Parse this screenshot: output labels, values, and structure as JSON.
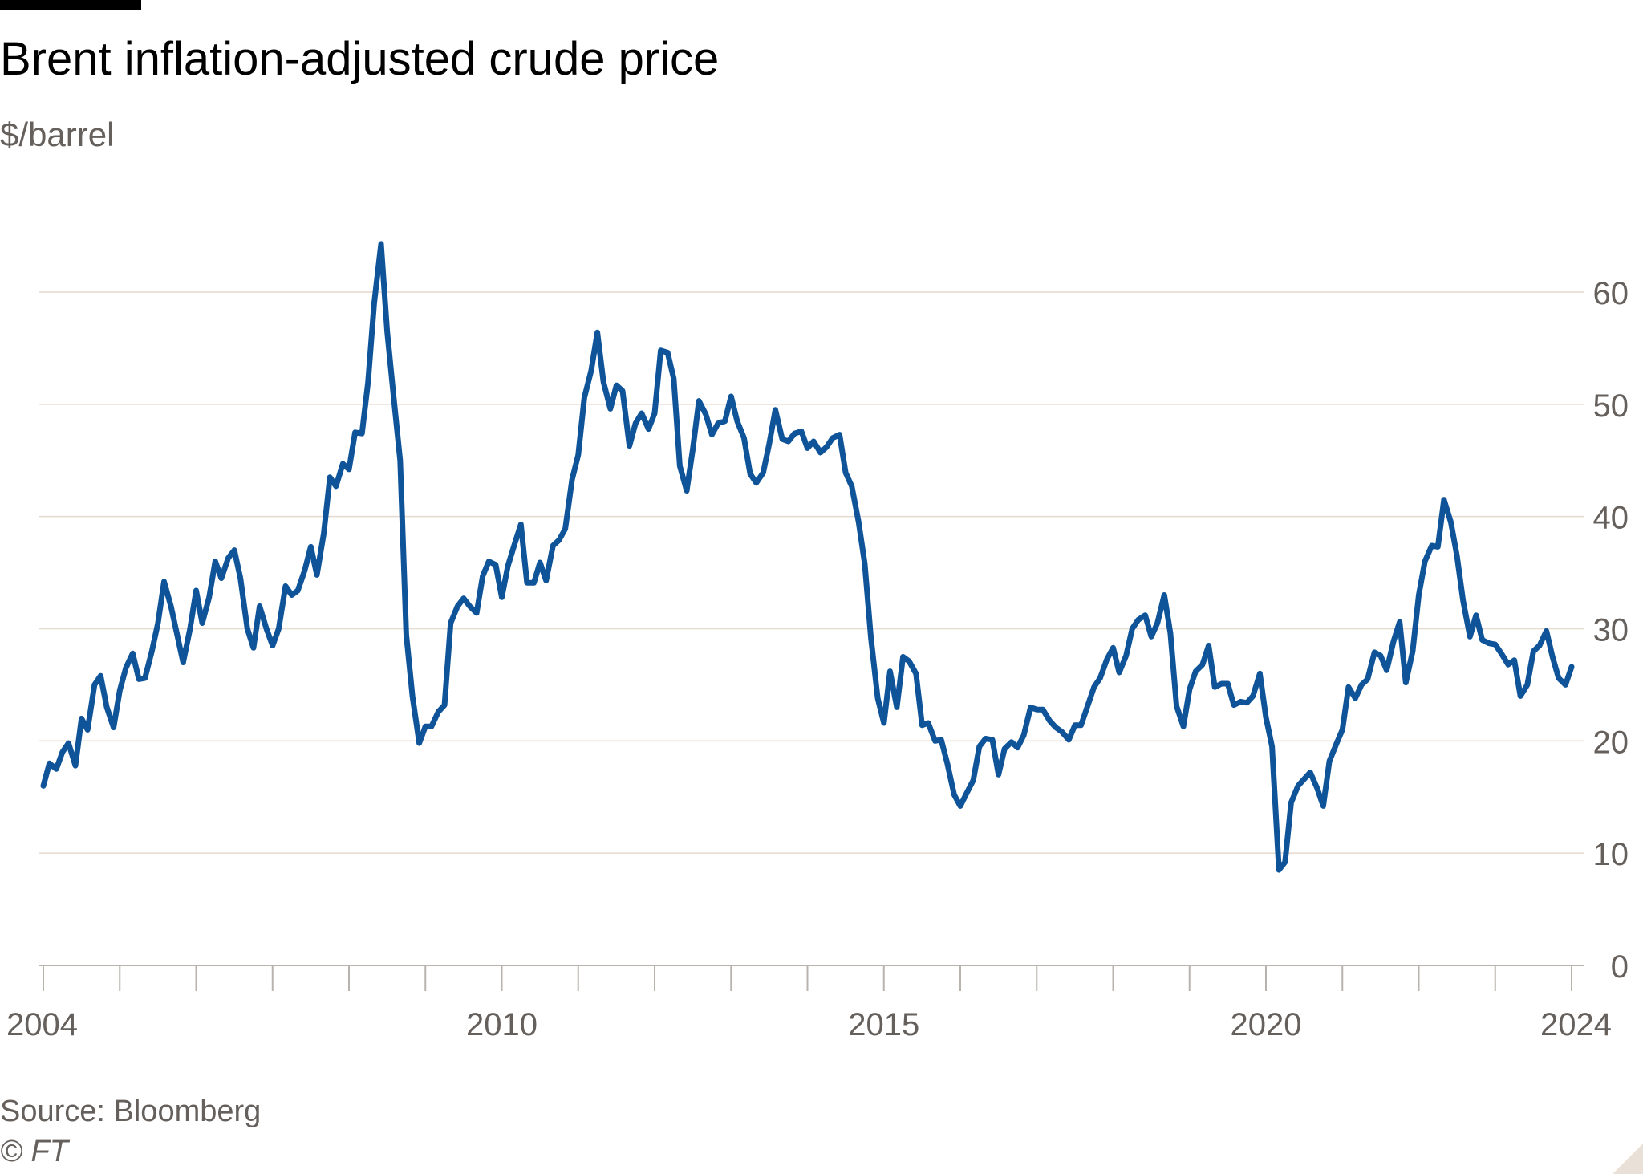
{
  "header": {
    "title": "Brent inflation-adjusted crude price",
    "subtitle": "$/barrel"
  },
  "footer": {
    "source": "Source: Bloomberg",
    "copyright": "© FT"
  },
  "colors": {
    "line": "#0f5499",
    "grid": "#e6d9ce",
    "axis_text": "#66605c",
    "title_text": "#000000"
  },
  "chart_data": {
    "type": "line",
    "title": "Brent inflation-adjusted crude price",
    "ylabel": "$/barrel",
    "xlabel": "",
    "xlim": [
      2004.0,
      2024.0
    ],
    "ylim": [
      0,
      60
    ],
    "y_ticks": [
      0,
      10,
      20,
      30,
      40,
      50,
      60
    ],
    "y_tick_labels": [
      "0",
      "10",
      "20",
      "30",
      "40",
      "50",
      "60"
    ],
    "x_tick_labels": [
      {
        "x": 2004,
        "label": "2004"
      },
      {
        "x": 2010,
        "label": "2010"
      },
      {
        "x": 2015,
        "label": "2015"
      },
      {
        "x": 2020,
        "label": "2020"
      },
      {
        "x": 2024,
        "label": "2024"
      }
    ],
    "x_minor_ticks": [
      2004,
      2005,
      2006,
      2007,
      2008,
      2009,
      2010,
      2011,
      2012,
      2013,
      2014,
      2015,
      2016,
      2017,
      2018,
      2019,
      2020,
      2021,
      2022,
      2023,
      2024
    ],
    "grid": true,
    "y_axis_side": "right",
    "legend": "none",
    "series": [
      {
        "values_x": [
          2004.0,
          2004.08,
          2004.17,
          2004.25,
          2004.33,
          2004.42,
          2004.5,
          2004.58,
          2004.67,
          2004.75,
          2004.83,
          2004.92,
          2005.0,
          2005.08,
          2005.17,
          2005.25,
          2005.33,
          2005.42,
          2005.5,
          2005.58,
          2005.67,
          2005.75,
          2005.83,
          2005.92,
          2006.0,
          2006.08,
          2006.17,
          2006.25,
          2006.33,
          2006.42,
          2006.5,
          2006.58,
          2006.67,
          2006.75,
          2006.83,
          2006.92,
          2007.0,
          2007.08,
          2007.17,
          2007.25,
          2007.33,
          2007.42,
          2007.5,
          2007.58,
          2007.67,
          2007.75,
          2007.83,
          2007.92,
          2008.0,
          2008.08,
          2008.17,
          2008.25,
          2008.33,
          2008.42,
          2008.5,
          2008.58,
          2008.67,
          2008.75,
          2008.83,
          2008.92,
          2009.0,
          2009.08,
          2009.17,
          2009.25,
          2009.33,
          2009.42,
          2009.5,
          2009.58,
          2009.67,
          2009.75,
          2009.83,
          2009.92,
          2010.0,
          2010.08,
          2010.17,
          2010.25,
          2010.33,
          2010.42,
          2010.5,
          2010.58,
          2010.67,
          2010.75,
          2010.83,
          2010.92,
          2011.0,
          2011.08,
          2011.17,
          2011.25,
          2011.33,
          2011.42,
          2011.5,
          2011.58,
          2011.67,
          2011.75,
          2011.83,
          2011.92,
          2012.0,
          2012.08,
          2012.17,
          2012.25,
          2012.33,
          2012.42,
          2012.5,
          2012.58,
          2012.67,
          2012.75,
          2012.83,
          2012.92,
          2013.0,
          2013.08,
          2013.17,
          2013.25,
          2013.33,
          2013.42,
          2013.5,
          2013.58,
          2013.67,
          2013.75,
          2013.83,
          2013.92,
          2014.0,
          2014.08,
          2014.17,
          2014.25,
          2014.33,
          2014.42,
          2014.5,
          2014.58,
          2014.67,
          2014.75,
          2014.83,
          2014.92,
          2015.0,
          2015.08,
          2015.17,
          2015.25,
          2015.33,
          2015.42,
          2015.5,
          2015.58,
          2015.67,
          2015.75,
          2015.83,
          2015.92,
          2016.0,
          2016.08,
          2016.17,
          2016.25,
          2016.33,
          2016.42,
          2016.5,
          2016.58,
          2016.67,
          2016.75,
          2016.83,
          2016.92,
          2017.0,
          2017.08,
          2017.17,
          2017.25,
          2017.33,
          2017.42,
          2017.5,
          2017.58,
          2017.67,
          2017.75,
          2017.83,
          2017.92,
          2018.0,
          2018.08,
          2018.17,
          2018.25,
          2018.33,
          2018.42,
          2018.5,
          2018.58,
          2018.67,
          2018.75,
          2018.83,
          2018.92,
          2019.0,
          2019.08,
          2019.17,
          2019.25,
          2019.33,
          2019.42,
          2019.5,
          2019.58,
          2019.67,
          2019.75,
          2019.83,
          2019.92,
          2020.0,
          2020.08,
          2020.17,
          2020.25,
          2020.33,
          2020.42,
          2020.5,
          2020.58,
          2020.67,
          2020.75,
          2020.83,
          2020.92,
          2021.0,
          2021.08,
          2021.17,
          2021.25,
          2021.33,
          2021.42,
          2021.5,
          2021.58,
          2021.67,
          2021.75,
          2021.83,
          2021.92,
          2022.0,
          2022.08,
          2022.17,
          2022.25,
          2022.33,
          2022.42,
          2022.5,
          2022.58,
          2022.67,
          2022.75,
          2022.83,
          2022.92,
          2023.0,
          2023.08,
          2023.17,
          2023.25,
          2023.33,
          2023.42,
          2023.5,
          2023.58,
          2023.67,
          2023.75,
          2023.83,
          2023.92,
          2024.0
        ],
        "values_y": [
          16,
          18,
          17.5,
          19,
          19.8,
          17.8,
          22,
          21,
          25,
          25.8,
          23,
          21.2,
          24.5,
          26.5,
          27.8,
          25.5,
          25.6,
          28,
          30.5,
          34.2,
          32,
          29.5,
          27,
          30,
          33.4,
          30.5,
          32.8,
          36,
          34.5,
          36.3,
          37,
          34.5,
          30,
          28.3,
          32,
          30,
          28.5,
          30,
          33.8,
          33,
          33.4,
          35.2,
          37.3,
          34.8,
          38.5,
          43.5,
          42.7,
          44.7,
          44.2,
          47.5,
          47.4,
          52,
          59,
          64.3,
          56.5,
          51,
          45,
          29.5,
          24,
          19.8,
          21.3,
          21.3,
          22.6,
          23.2,
          30.5,
          32,
          32.7,
          32,
          31.4,
          34.7,
          36,
          35.7,
          32.8,
          35.6,
          37.6,
          39.3,
          34.1,
          34.1,
          35.9,
          34.3,
          37.4,
          37.9,
          38.9,
          43.3,
          45.5,
          50.6,
          53,
          56.4,
          52,
          49.6,
          51.7,
          51.2,
          46.3,
          48.3,
          49.2,
          47.8,
          49.2,
          54.8,
          54.6,
          52.3,
          44.5,
          42.3,
          46,
          50.3,
          49.1,
          47.3,
          48.3,
          48.5,
          50.7,
          48.5,
          47,
          43.8,
          43,
          43.9,
          46.5,
          49.5,
          46.9,
          46.7,
          47.4,
          47.6,
          46.1,
          46.7,
          45.7,
          46.2,
          47,
          47.3,
          43.9,
          42.7,
          39.5,
          35.8,
          29.2,
          23.8,
          21.6,
          26.2,
          23,
          27.5,
          27.1,
          26,
          21.4,
          21.6,
          20,
          20.1,
          18,
          15.2,
          14.2,
          15.3,
          16.5,
          19.5,
          20.2,
          20.1,
          17,
          19.3,
          19.9,
          19.4,
          20.5,
          23,
          22.8,
          22.8,
          21.8,
          21.2,
          20.8,
          20.1,
          21.4,
          21.4,
          23.2,
          24.8,
          25.6,
          27.3,
          28.3,
          26.1,
          27.6,
          30,
          30.8,
          31.2,
          29.3,
          30.5,
          33,
          29.6,
          23.1,
          21.3,
          24.6,
          26.2,
          26.8,
          28.5,
          24.8,
          25.1,
          25.1,
          23.2,
          23.5,
          23.4,
          24,
          26,
          22.1,
          19.5,
          8.5,
          9.2,
          14.5,
          16,
          16.6,
          17.2,
          15.8,
          14.2,
          18.2,
          19.7,
          21,
          24.8,
          23.8,
          25,
          25.5,
          27.9,
          27.6,
          26.3,
          28.9,
          30.6,
          25.2,
          28,
          33,
          36,
          37.4,
          37.3,
          41.5,
          39.5,
          36.5,
          32.5,
          29.3,
          31.2,
          29,
          28.7,
          28.6,
          27.8,
          26.8,
          27.2,
          24,
          25,
          28,
          28.5,
          29.8,
          27.5,
          25.6,
          25,
          26.6
        ]
      }
    ]
  }
}
